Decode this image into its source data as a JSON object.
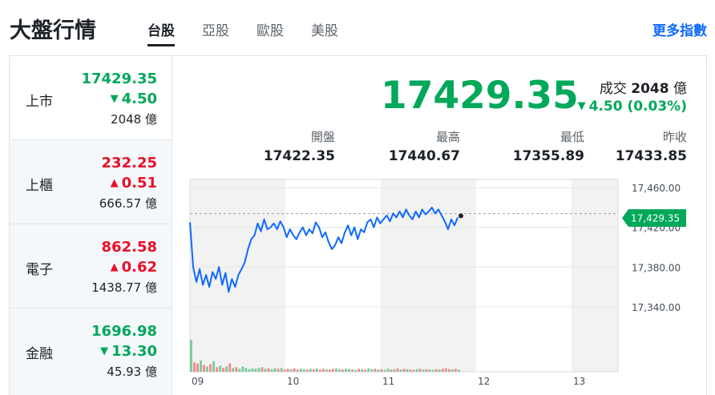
{
  "header": {
    "title": "大盤行情",
    "tabs": [
      {
        "label": "台股",
        "active": true
      },
      {
        "label": "亞股",
        "active": false
      },
      {
        "label": "歐股",
        "active": false
      },
      {
        "label": "美股",
        "active": false
      }
    ],
    "more_link": "更多指數"
  },
  "colors": {
    "up": "#eb0f29",
    "down": "#00a85a",
    "accent": "#0f69ff",
    "line": "#0f69ff"
  },
  "markets": [
    {
      "name": "上市",
      "price": "17429.35",
      "change": "4.50",
      "direction": "down",
      "volume": "2048 億"
    },
    {
      "name": "上櫃",
      "price": "232.25",
      "change": "0.51",
      "direction": "up",
      "volume": "666.57 億"
    },
    {
      "name": "電子",
      "price": "862.58",
      "change": "0.62",
      "direction": "up",
      "volume": "1438.77 億"
    },
    {
      "name": "金融",
      "price": "1696.98",
      "change": "13.30",
      "direction": "down",
      "volume": "45.93 億"
    }
  ],
  "detail": {
    "price": "17429.35",
    "turnover_label": "成交",
    "turnover_value": "2048",
    "turnover_unit": "億",
    "change": "4.50 (0.03%)",
    "stats": [
      {
        "label": "開盤",
        "value": "17422.35"
      },
      {
        "label": "最高",
        "value": "17440.67"
      },
      {
        "label": "最低",
        "value": "17355.89"
      },
      {
        "label": "昨收",
        "value": "17433.85"
      }
    ]
  },
  "chart_data": {
    "type": "line",
    "x_ticks": [
      "09",
      "10",
      "11",
      "12",
      "13"
    ],
    "y_ticks": [
      "17,460.00",
      "17,420.00",
      "17,380.00",
      "17,340.00"
    ],
    "ylim": [
      17310,
      17465
    ],
    "reference_value": 17433.85,
    "current_label": "17,429.35",
    "current_value": 17429.35,
    "series": [
      {
        "values": [
          17425,
          17380,
          17365,
          17378,
          17362,
          17372,
          17360,
          17375,
          17368,
          17380,
          17362,
          17374,
          17355,
          17368,
          17360,
          17372,
          17378,
          17385,
          17398,
          17408,
          17412,
          17424,
          17416,
          17428,
          17418,
          17420,
          17424,
          17418,
          17426,
          17420,
          17410,
          17418,
          17412,
          17408,
          17415,
          17420,
          17412,
          17418,
          17414,
          17425,
          17420,
          17410,
          17415,
          17405,
          17398,
          17402,
          17410,
          17404,
          17415,
          17422,
          17412,
          17420,
          17408,
          17418,
          17415,
          17425,
          17428,
          17420,
          17430,
          17424,
          17428,
          17432,
          17426,
          17434,
          17430,
          17436,
          17430,
          17438,
          17432,
          17428,
          17436,
          17430,
          17438,
          17433,
          17436,
          17440,
          17434,
          17438,
          17432,
          17426,
          17418,
          17428,
          17422,
          17430
        ]
      }
    ],
    "volume": [
      85,
      25,
      22,
      30,
      18,
      14,
      20,
      28,
      12,
      16,
      10,
      14,
      22,
      10,
      12,
      8,
      14,
      10,
      7,
      9,
      8,
      10,
      12,
      8,
      9,
      7,
      9,
      8,
      10,
      6,
      8,
      7,
      9,
      6,
      8,
      7,
      6,
      8,
      7,
      9,
      6,
      8,
      7,
      6,
      8,
      9,
      7,
      6,
      8,
      7,
      6,
      5,
      8,
      7,
      6,
      9,
      7,
      8,
      6,
      7,
      5,
      8,
      6,
      7,
      9,
      6,
      8,
      7,
      6,
      5,
      7,
      8,
      6,
      7,
      6,
      5,
      7,
      6,
      8,
      9,
      7,
      6,
      8,
      5
    ],
    "grid": true
  }
}
